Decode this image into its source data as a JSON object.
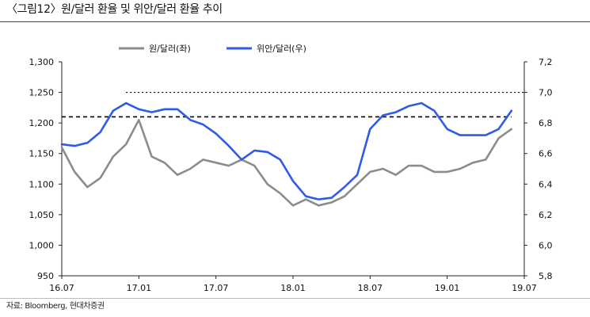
{
  "header": {
    "title": "〈그림12〉원/달러 환율 및 위안/달러 환율 추이"
  },
  "footer": {
    "source": "자료: Bloomberg, 현대차증권"
  },
  "chart_data": {
    "type": "line",
    "title": "〈그림12〉원/달러 환율 및 위안/달러 환율 추이",
    "xlabel": "",
    "ylabel_left": "",
    "ylabel_right": "",
    "x_range": [
      "2016-07",
      "2019-07"
    ],
    "x_ticks": [
      "16.07",
      "17.01",
      "17.07",
      "18.01",
      "18.07",
      "19.01",
      "19.07"
    ],
    "y_left": {
      "range": [
        950,
        1300
      ],
      "ticks": [
        "950",
        "1,000",
        "1,050",
        "1,100",
        "1,150",
        "1,200",
        "1,250",
        "1,300"
      ]
    },
    "y_right": {
      "range": [
        5.8,
        7.2
      ],
      "ticks": [
        "5,8",
        "6,0",
        "6,2",
        "6,4",
        "6,6",
        "6,8",
        "7,0",
        "7,2"
      ]
    },
    "grid": false,
    "legend_position": "top-center",
    "reference_lines": [
      {
        "axis": "left",
        "value": 1210,
        "x_start": "2016-07",
        "x_end": "2019-06",
        "style": "dashed",
        "color": "#000000"
      },
      {
        "axis": "right",
        "value": 7.0,
        "x_start": "2016-12",
        "x_end": "2019-07",
        "style": "dotted",
        "color": "#000000"
      }
    ],
    "series": [
      {
        "name": "원/달러(좌)",
        "axis": "left",
        "color": "#8c8c8c",
        "x": [
          "2016-07",
          "2016-08",
          "2016-09",
          "2016-10",
          "2016-11",
          "2016-12",
          "2017-01",
          "2017-02",
          "2017-03",
          "2017-04",
          "2017-05",
          "2017-06",
          "2017-07",
          "2017-08",
          "2017-09",
          "2017-10",
          "2017-11",
          "2017-12",
          "2018-01",
          "2018-02",
          "2018-03",
          "2018-04",
          "2018-05",
          "2018-06",
          "2018-07",
          "2018-08",
          "2018-09",
          "2018-10",
          "2018-11",
          "2018-12",
          "2019-01",
          "2019-02",
          "2019-03",
          "2019-04",
          "2019-05",
          "2019-06"
        ],
        "values": [
          1160,
          1120,
          1095,
          1110,
          1145,
          1165,
          1205,
          1145,
          1135,
          1115,
          1125,
          1140,
          1135,
          1130,
          1140,
          1130,
          1100,
          1085,
          1065,
          1075,
          1065,
          1070,
          1080,
          1100,
          1120,
          1125,
          1115,
          1130,
          1130,
          1120,
          1120,
          1125,
          1135,
          1140,
          1175,
          1190
        ]
      },
      {
        "name": "위안/달러(우)",
        "axis": "right",
        "color": "#2f5be8",
        "x": [
          "2016-07",
          "2016-08",
          "2016-09",
          "2016-10",
          "2016-11",
          "2016-12",
          "2017-01",
          "2017-02",
          "2017-03",
          "2017-04",
          "2017-05",
          "2017-06",
          "2017-07",
          "2017-08",
          "2017-09",
          "2017-10",
          "2017-11",
          "2017-12",
          "2018-01",
          "2018-02",
          "2018-03",
          "2018-04",
          "2018-05",
          "2018-06",
          "2018-07",
          "2018-08",
          "2018-09",
          "2018-10",
          "2018-11",
          "2018-12",
          "2019-01",
          "2019-02",
          "2019-03",
          "2019-04",
          "2019-05",
          "2019-06"
        ],
        "values": [
          6.66,
          6.65,
          6.67,
          6.74,
          6.88,
          6.93,
          6.89,
          6.87,
          6.89,
          6.89,
          6.82,
          6.79,
          6.73,
          6.65,
          6.56,
          6.62,
          6.61,
          6.56,
          6.42,
          6.32,
          6.3,
          6.31,
          6.38,
          6.46,
          6.76,
          6.85,
          6.87,
          6.91,
          6.93,
          6.88,
          6.76,
          6.72,
          6.72,
          6.72,
          6.76,
          6.88
        ]
      }
    ]
  }
}
